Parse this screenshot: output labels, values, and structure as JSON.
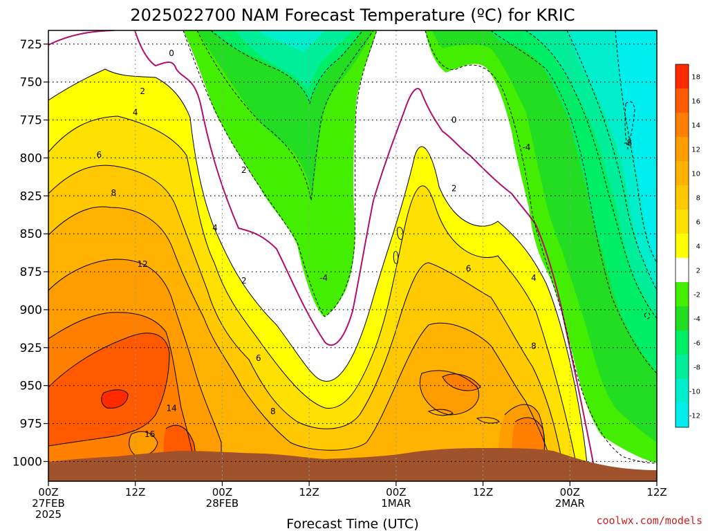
{
  "colors": {
    "t18": "#ff2a00",
    "t16": "#ff5a00",
    "t14": "#ff7f00",
    "t12": "#ff9c00",
    "t10": "#ffb200",
    "t8": "#ffc800",
    "t6": "#ffe000",
    "t4": "#ffff00",
    "t2": "#ffffff",
    "tm2": "#44ee00",
    "tm4": "#22dd22",
    "tm6": "#00ee66",
    "tm8": "#00ee99",
    "tm10": "#00eecc",
    "tm12": "#00eeee",
    "ground": "#a0522d",
    "zero_line": "#b0106a",
    "credit": "#cc2020"
  },
  "chart_data": {
    "type": "heatmap",
    "title": "2025022700 NAM Forecast Temperature (ºC) for KRIC",
    "xlabel": "Forecast Time (UTC)",
    "ylabel": "",
    "x_ticks": [
      {
        "hour": 0,
        "lines": [
          "00Z",
          "27FEB",
          "2025"
        ]
      },
      {
        "hour": 12,
        "lines": [
          "12Z"
        ]
      },
      {
        "hour": 24,
        "lines": [
          "00Z",
          "28FEB"
        ]
      },
      {
        "hour": 36,
        "lines": [
          "12Z"
        ]
      },
      {
        "hour": 48,
        "lines": [
          "00Z",
          "1MAR"
        ]
      },
      {
        "hour": 60,
        "lines": [
          "12Z"
        ]
      },
      {
        "hour": 72,
        "lines": [
          "00Z",
          "2MAR"
        ]
      },
      {
        "hour": 84,
        "lines": [
          "12Z"
        ]
      }
    ],
    "xlim": [
      0,
      84
    ],
    "y_ticks": [
      725,
      750,
      775,
      800,
      825,
      850,
      875,
      900,
      925,
      950,
      975,
      1000
    ],
    "ylim": [
      716,
      1013
    ],
    "y_inverted": true,
    "grid": true,
    "colorbar": {
      "position": "right",
      "labels": [
        "18",
        "16",
        "14",
        "12",
        "10",
        "8",
        "6",
        "4",
        "2",
        "-2",
        "-4",
        "-6",
        "-8",
        "-10",
        "-12"
      ],
      "bins": [
        "t18",
        "t16",
        "t14",
        "t12",
        "t10",
        "t8",
        "t6",
        "t4",
        "t2",
        "tm2",
        "tm4",
        "tm6",
        "tm8",
        "tm10",
        "tm12"
      ]
    },
    "contour_labels": [
      {
        "text": "0",
        "hour": 17,
        "p": 731
      },
      {
        "text": "2",
        "hour": 13,
        "p": 756
      },
      {
        "text": "4",
        "hour": 12,
        "p": 770
      },
      {
        "text": "6",
        "hour": 7,
        "p": 798
      },
      {
        "text": "8",
        "hour": 9,
        "p": 823
      },
      {
        "text": "12",
        "hour": 13,
        "p": 870
      },
      {
        "text": "16",
        "hour": 14,
        "p": 982
      },
      {
        "text": "14",
        "hour": 17,
        "p": 965
      },
      {
        "text": "4",
        "hour": 23,
        "p": 846
      },
      {
        "text": "2",
        "hour": 27,
        "p": 808
      },
      {
        "text": "2",
        "hour": 27,
        "p": 881
      },
      {
        "text": "6",
        "hour": 29,
        "p": 932
      },
      {
        "text": "8",
        "hour": 31,
        "p": 967
      },
      {
        "text": "-4",
        "hour": 38,
        "p": 879
      },
      {
        "text": "0",
        "hour": 56,
        "p": 775
      },
      {
        "text": "2",
        "hour": 56,
        "p": 820
      },
      {
        "text": "6",
        "hour": 58,
        "p": 873
      },
      {
        "text": "4",
        "hour": 67,
        "p": 879
      },
      {
        "text": "8",
        "hour": 67,
        "p": 924
      },
      {
        "text": "-4",
        "hour": 66,
        "p": 793
      },
      {
        "text": "-8",
        "hour": 80,
        "p": 790
      }
    ],
    "credit": "coolwx.com/models"
  }
}
